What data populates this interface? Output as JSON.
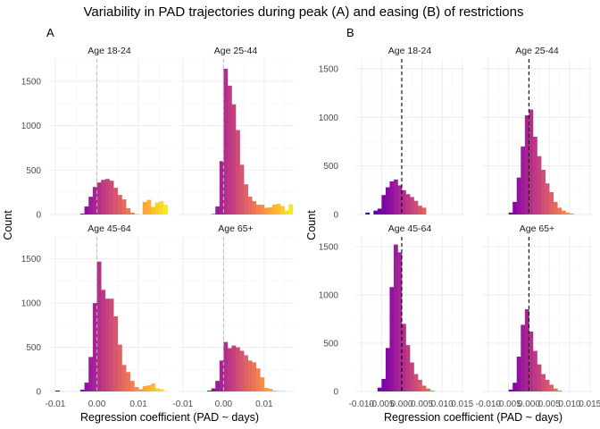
{
  "title": "Variability in PAD trajectories during peak (A) and easing (B) of restrictions",
  "chart_data": [
    {
      "type": "bar",
      "panel": "A",
      "xlabel": "Regression coefficient (PAD ~ days)",
      "ylabel": "Count",
      "xlim": [
        -0.0115,
        0.0175
      ],
      "ylim": [
        0,
        1750
      ],
      "x_ticks": [
        -0.01,
        0.0,
        0.01
      ],
      "x_tick_labels": [
        "-0.01",
        "0.00",
        "0.01"
      ],
      "y_ticks": [
        0,
        500,
        1000,
        1500
      ],
      "y_tick_labels": [
        "0",
        "500",
        "1000",
        "1500"
      ],
      "reference_line": {
        "x": 0.0,
        "style": "dashed",
        "color": "#bbbbbb"
      },
      "grid": true,
      "color_scale": "plasma (bar color by x value)",
      "bin_width": 0.001,
      "bin_centers": [
        -0.0105,
        -0.0095,
        -0.0085,
        -0.0075,
        -0.0065,
        -0.0055,
        -0.0045,
        -0.0035,
        -0.0025,
        -0.0015,
        -0.0005,
        0.0005,
        0.0015,
        0.0025,
        0.0035,
        0.0045,
        0.0055,
        0.0065,
        0.0075,
        0.0085,
        0.0095,
        0.0105,
        0.0115,
        0.0125,
        0.0135,
        0.0145,
        0.0155,
        0.0165
      ],
      "facets": [
        {
          "label": "Age 18-24",
          "values": [
            0,
            0,
            0,
            0,
            0,
            0,
            0,
            10,
            90,
            200,
            310,
            360,
            390,
            400,
            380,
            300,
            220,
            170,
            70,
            20,
            5,
            0,
            140,
            165,
            85,
            135,
            150,
            110
          ]
        },
        {
          "label": "Age 25-44",
          "values": [
            0,
            0,
            0,
            0,
            0,
            0,
            0,
            0,
            5,
            90,
            600,
            1640,
            1450,
            1240,
            950,
            560,
            340,
            200,
            150,
            110,
            110,
            75,
            80,
            110,
            120,
            95,
            45,
            115
          ]
        },
        {
          "label": "Age 45-64",
          "values": [
            0,
            10,
            0,
            0,
            0,
            0,
            0,
            20,
            100,
            390,
            1000,
            1470,
            1150,
            1050,
            1050,
            850,
            530,
            300,
            220,
            120,
            50,
            25,
            60,
            70,
            90,
            35,
            25,
            5
          ]
        },
        {
          "label": "Age 65+",
          "values": [
            0,
            0,
            0,
            0,
            0,
            0,
            0,
            10,
            35,
            120,
            350,
            560,
            490,
            520,
            500,
            460,
            410,
            350,
            330,
            260,
            160,
            40,
            30,
            10,
            5,
            5,
            0,
            0
          ]
        }
      ]
    },
    {
      "type": "bar",
      "panel": "B",
      "xlabel": "Regression coefficient (PAD ~ days)",
      "ylabel": "Count",
      "xlim": [
        -0.0115,
        0.0155
      ],
      "ylim": [
        0,
        1600
      ],
      "x_ticks": [
        -0.01,
        -0.005,
        0.0,
        0.005,
        0.01,
        0.015
      ],
      "x_tick_labels": [
        "-0.010",
        "-0.005",
        "0.000",
        "0.005",
        "0.010",
        "0.015"
      ],
      "y_ticks": [
        0,
        500,
        1000,
        1500
      ],
      "y_tick_labels": [
        "0",
        "500",
        "1000",
        "1500"
      ],
      "reference_line": {
        "x": 0.0,
        "style": "dashed",
        "color": "#000000"
      },
      "grid": true,
      "color_scale": "plasma (bar color by x value)",
      "bin_width": 0.001,
      "bin_centers": [
        -0.0105,
        -0.0095,
        -0.0085,
        -0.0075,
        -0.0065,
        -0.0055,
        -0.0045,
        -0.0035,
        -0.0025,
        -0.0015,
        -0.0005,
        0.0005,
        0.0015,
        0.0025,
        0.0035,
        0.0045,
        0.0055,
        0.0065,
        0.0075,
        0.0085,
        0.0095,
        0.0105,
        0.0115,
        0.0125,
        0.0135,
        0.0145
      ],
      "facets": [
        {
          "label": "Age 18-24",
          "values": [
            0,
            0,
            20,
            0,
            40,
            60,
            200,
            280,
            340,
            360,
            300,
            250,
            210,
            180,
            140,
            90,
            70,
            0,
            0,
            0,
            0,
            0,
            0,
            0,
            0,
            0
          ]
        },
        {
          "label": "Age 25-44",
          "values": [
            0,
            0,
            0,
            0,
            0,
            0,
            20,
            130,
            380,
            700,
            1020,
            1080,
            800,
            600,
            460,
            320,
            230,
            130,
            70,
            40,
            20,
            10,
            0,
            0,
            0,
            0
          ]
        },
        {
          "label": "Age 45-64",
          "values": [
            0,
            0,
            0,
            0,
            0,
            40,
            130,
            450,
            1080,
            1520,
            1440,
            700,
            480,
            300,
            180,
            120,
            60,
            30,
            10,
            0,
            0,
            0,
            0,
            0,
            0,
            0
          ]
        },
        {
          "label": "Age 65+",
          "values": [
            0,
            0,
            0,
            0,
            0,
            0,
            20,
            90,
            360,
            690,
            850,
            620,
            420,
            280,
            180,
            120,
            70,
            30,
            10,
            0,
            0,
            0,
            0,
            0,
            0,
            0
          ]
        }
      ]
    }
  ]
}
